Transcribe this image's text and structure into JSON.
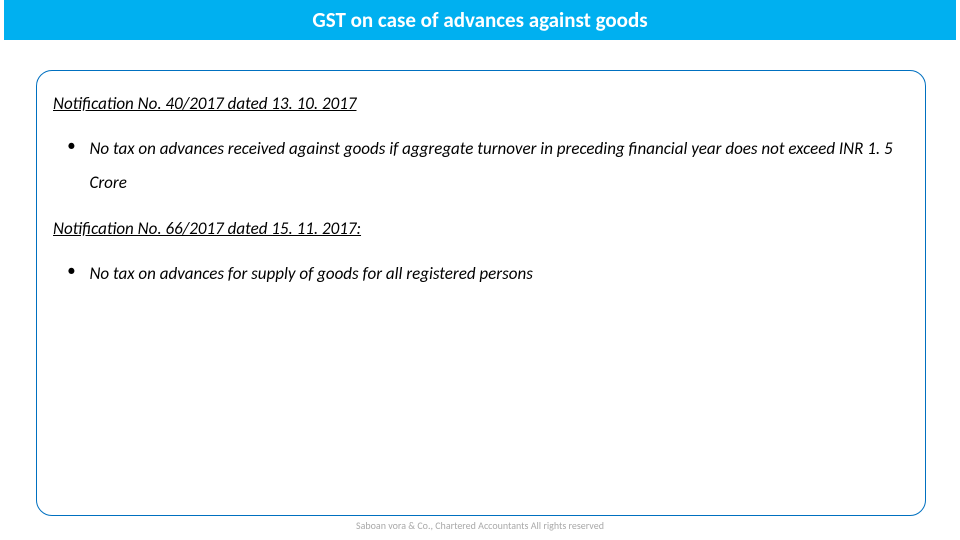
{
  "title": "GST on case of advances against goods",
  "section1": {
    "heading": "Notification No. 40/2017 dated 13. 10. 2017",
    "bullet": "No tax on advances received against goods if aggregate turnover in preceding financial year does not exceed INR 1. 5 Crore"
  },
  "section2": {
    "heading": "Notification No. 66/2017 dated 15. 11. 2017:",
    "bullet": "No tax on advances for supply of goods for all registered persons"
  },
  "footer": "Saboan vora & Co., Chartered Accountants All rights reserved",
  "colors": {
    "title_bg": "#00b0f0",
    "title_text": "#ffffff",
    "border": "#0070c0",
    "body_text": "#000000",
    "footer_text": "#aaaaaa"
  }
}
